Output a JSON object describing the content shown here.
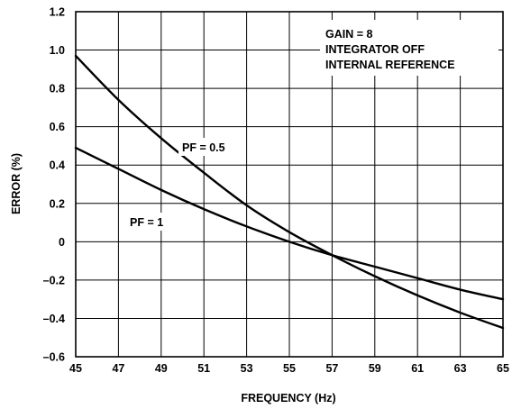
{
  "chart_data": {
    "type": "line",
    "xlabel": "FREQUENCY (Hz)",
    "ylabel": "ERROR (%)",
    "xlim": [
      45,
      65
    ],
    "ylim": [
      -0.6,
      1.2
    ],
    "x_ticks": [
      45,
      47,
      49,
      51,
      53,
      55,
      57,
      59,
      61,
      63,
      65
    ],
    "y_ticks": [
      1.2,
      1.0,
      0.8,
      0.6,
      0.4,
      0.2,
      0,
      -0.2,
      -0.4,
      -0.6
    ],
    "x_tick_labels": [
      "45",
      "47",
      "49",
      "51",
      "53",
      "55",
      "57",
      "59",
      "61",
      "63",
      "65"
    ],
    "y_tick_labels": [
      "1.2",
      "1.0",
      "0.8",
      "0.6",
      "0.4",
      "0.2",
      "0",
      "–0.2",
      "–0.4",
      "–0.6"
    ],
    "grid": true,
    "series": [
      {
        "name": "PF = 0.5",
        "x": [
          45,
          47,
          49,
          51,
          53,
          55,
          57,
          59,
          61,
          63,
          65
        ],
        "y": [
          0.97,
          0.74,
          0.54,
          0.36,
          0.19,
          0.05,
          -0.07,
          -0.18,
          -0.28,
          -0.37,
          -0.45
        ]
      },
      {
        "name": "PF = 1",
        "x": [
          45,
          47,
          49,
          51,
          53,
          55,
          57,
          59,
          61,
          63,
          65
        ],
        "y": [
          0.49,
          0.38,
          0.27,
          0.17,
          0.08,
          0.0,
          -0.07,
          -0.13,
          -0.19,
          -0.25,
          -0.3
        ]
      }
    ],
    "annotations": [
      "GAIN = 8",
      "INTEGRATOR OFF",
      "INTERNAL REFERENCE"
    ]
  }
}
